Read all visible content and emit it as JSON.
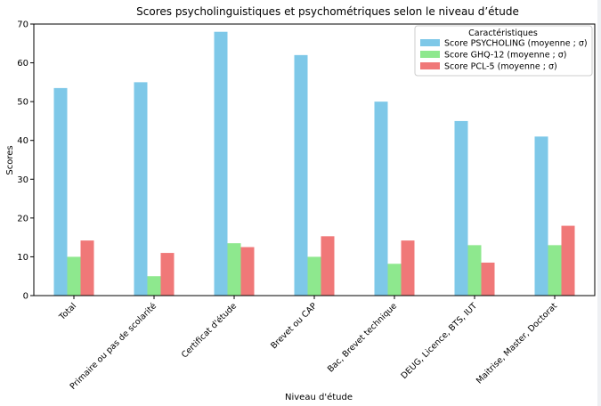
{
  "chart_data": {
    "type": "bar",
    "title": "Scores psycholinguistiques et psychométriques selon le niveau d’étude",
    "xlabel": "Niveau d'étude",
    "ylabel": "Scores",
    "ylim": [
      0,
      70
    ],
    "yticks": [
      0,
      10,
      20,
      30,
      40,
      50,
      60,
      70
    ],
    "categories": [
      "Total",
      "Primaire ou pas de scolarité",
      "Certificat d'étude",
      "Brevet ou CAP",
      "Bac, Brevet technique",
      "DEUG, Licence, BTS, IUT",
      "Maitrise, Master, Doctorat"
    ],
    "series": [
      {
        "name": "Score PSYCHOLING (moyenne ; σ)",
        "color": "#7ec8e8",
        "values": [
          53.5,
          55,
          68,
          62,
          50,
          45,
          41
        ]
      },
      {
        "name": "Score GHQ-12 (moyenne ; σ)",
        "color": "#8ee88e",
        "values": [
          10,
          5,
          13.5,
          10,
          8.2,
          13,
          13
        ]
      },
      {
        "name": "Score PCL-5 (moyenne ; σ)",
        "color": "#f07878",
        "values": [
          14.2,
          11,
          12.5,
          15.3,
          14.2,
          8.5,
          18
        ]
      }
    ],
    "legend": {
      "title": "Caractéristiques",
      "placement": "top-right"
    },
    "grid": false
  }
}
